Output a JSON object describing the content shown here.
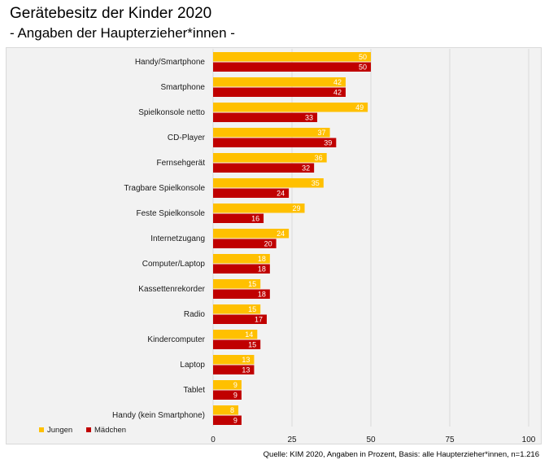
{
  "title": "Gerätebesitz der Kinder 2020",
  "subtitle": "- Angaben der Haupterzieher*innen -",
  "source": "Quelle: KIM 2020, Angaben in Prozent, Basis: alle Haupterzieher*innen, n=1.216",
  "chart_data": {
    "type": "bar",
    "orientation": "horizontal",
    "title": "Gerätebesitz der Kinder 2020",
    "subtitle": "- Angaben der Haupterzieher*innen -",
    "categories": [
      "Handy/Smartphone",
      "Smartphone",
      "Spielkonsole netto",
      "CD-Player",
      "Fernsehgerät",
      "Tragbare Spielkonsole",
      "Feste Spielkonsole",
      "Internetzugang",
      "Computer/Laptop",
      "Kassettenrekorder",
      "Radio",
      "Kindercomputer",
      "Laptop",
      "Tablet",
      "Handy (kein Smartphone)"
    ],
    "series": [
      {
        "name": "Jungen",
        "color": "#ffc000",
        "values": [
          50,
          42,
          49,
          37,
          36,
          35,
          29,
          24,
          18,
          15,
          15,
          14,
          13,
          9,
          8
        ]
      },
      {
        "name": "Mädchen",
        "color": "#c00000",
        "values": [
          50,
          42,
          33,
          39,
          32,
          24,
          16,
          20,
          18,
          18,
          17,
          15,
          13,
          9,
          9
        ]
      }
    ],
    "xlim": [
      0,
      100
    ],
    "xticks": [
      0,
      25,
      50,
      75,
      100
    ],
    "grid": true,
    "legend": "bottom-left",
    "xlabel": "",
    "ylabel": ""
  }
}
